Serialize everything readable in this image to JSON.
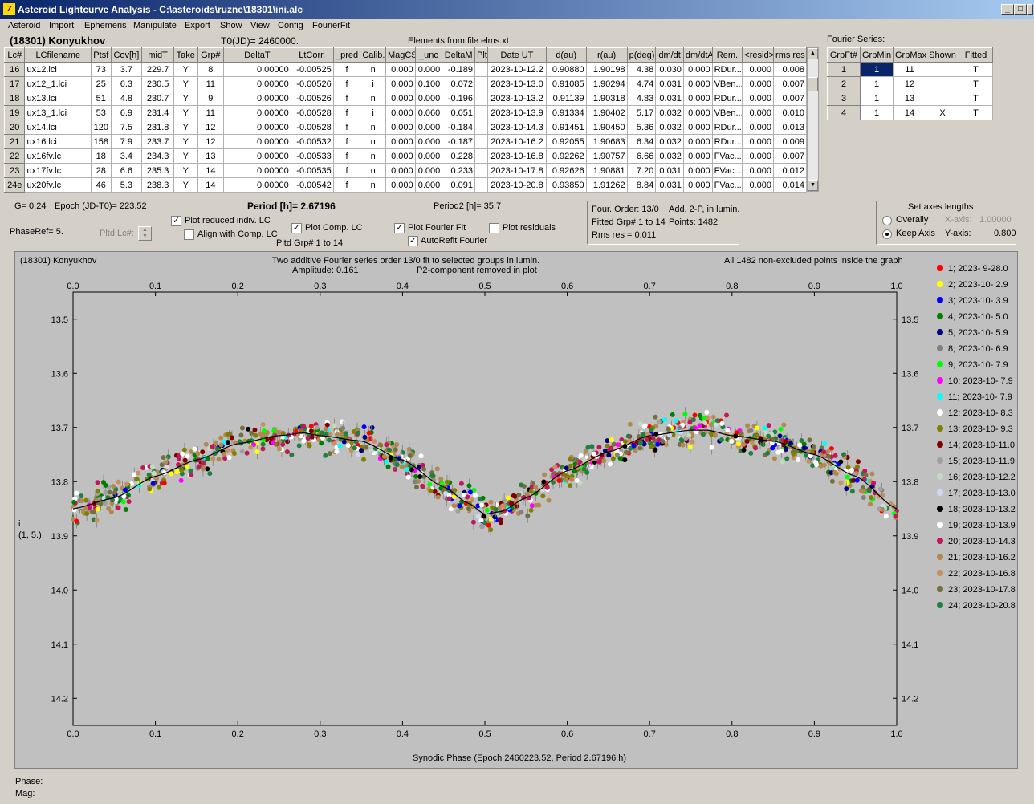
{
  "window": {
    "title": "Asteroid Lightcurve Analysis - C:\\asteroids\\ruzne\\18301\\ini.alc",
    "min": "_",
    "max": "□",
    "close": "×"
  },
  "menu": [
    "Asteroid",
    "Import",
    "Ephemeris",
    "Manipulate",
    "Export",
    "Show",
    "View",
    "Config",
    "FourierFit"
  ],
  "header": {
    "object": "(18301) Konyukhov",
    "t0": "T0(JD)= 2460000.",
    "elements": "Elements from file elms.xt",
    "fourier_title": "Fourier Series:"
  },
  "lc_table": {
    "columns": [
      "Lc#",
      "LCfilename",
      "Ptsf",
      "Cov[h]",
      "midT",
      "Take",
      "Grp#",
      "DeltaT",
      "LtCorr.",
      "_pred",
      "Calib.",
      "MagCS",
      "_unc",
      "DeltaM",
      "Plt",
      "Date UT",
      "d(au)",
      "r(au)",
      "p(deg)",
      "dm/dt",
      "dm/dtA",
      "Rem.",
      "<resid>",
      "rms res"
    ],
    "rows": [
      [
        "16",
        "ux12.lci",
        "73",
        "3.7",
        "229.7",
        "Y",
        "8",
        "0.00000",
        "-0.00525",
        "f",
        "n",
        "0.000",
        "0.000",
        "-0.189",
        "",
        "2023-10-12.2",
        "0.90880",
        "1.90198",
        "4.38",
        "0.030",
        "0.000",
        "RDur...",
        "0.000",
        "0.008"
      ],
      [
        "17",
        "ux12_1.lci",
        "25",
        "6.3",
        "230.5",
        "Y",
        "11",
        "0.00000",
        "-0.00526",
        "f",
        "i",
        "0.000",
        "0.100",
        "0.072",
        "",
        "2023-10-13.0",
        "0.91085",
        "1.90294",
        "4.74",
        "0.031",
        "0.000",
        "VBen...",
        "0.000",
        "0.007"
      ],
      [
        "18",
        "ux13.lci",
        "51",
        "4.8",
        "230.7",
        "Y",
        "9",
        "0.00000",
        "-0.00526",
        "f",
        "n",
        "0.000",
        "0.000",
        "-0.196",
        "",
        "2023-10-13.2",
        "0.91139",
        "1.90318",
        "4.83",
        "0.031",
        "0.000",
        "RDur...",
        "0.000",
        "0.007"
      ],
      [
        "19",
        "ux13_1.lci",
        "53",
        "6.9",
        "231.4",
        "Y",
        "11",
        "0.00000",
        "-0.00528",
        "f",
        "i",
        "0.000",
        "0.060",
        "0.051",
        "",
        "2023-10-13.9",
        "0.91334",
        "1.90402",
        "5.17",
        "0.032",
        "0.000",
        "VBen...",
        "0.000",
        "0.010"
      ],
      [
        "20",
        "ux14.lci",
        "120",
        "7.5",
        "231.8",
        "Y",
        "12",
        "0.00000",
        "-0.00528",
        "f",
        "n",
        "0.000",
        "0.000",
        "-0.184",
        "",
        "2023-10-14.3",
        "0.91451",
        "1.90450",
        "5.36",
        "0.032",
        "0.000",
        "RDur...",
        "0.000",
        "0.013"
      ],
      [
        "21",
        "ux16.lci",
        "158",
        "7.9",
        "233.7",
        "Y",
        "12",
        "0.00000",
        "-0.00532",
        "f",
        "n",
        "0.000",
        "0.000",
        "-0.187",
        "",
        "2023-10-16.2",
        "0.92055",
        "1.90683",
        "6.34",
        "0.032",
        "0.000",
        "RDur...",
        "0.000",
        "0.009"
      ],
      [
        "22",
        "ux16fv.lc",
        "18",
        "3.4",
        "234.3",
        "Y",
        "13",
        "0.00000",
        "-0.00533",
        "f",
        "n",
        "0.000",
        "0.000",
        "0.228",
        "",
        "2023-10-16.8",
        "0.92262",
        "1.90757",
        "6.66",
        "0.032",
        "0.000",
        "FVac...",
        "0.000",
        "0.007"
      ],
      [
        "23",
        "ux17fv.lc",
        "28",
        "6.6",
        "235.3",
        "Y",
        "14",
        "0.00000",
        "-0.00535",
        "f",
        "n",
        "0.000",
        "0.000",
        "0.233",
        "",
        "2023-10-17.8",
        "0.92626",
        "1.90881",
        "7.20",
        "0.031",
        "0.000",
        "FVac...",
        "0.000",
        "0.012"
      ],
      [
        "24e",
        "ux20fv.lc",
        "46",
        "5.3",
        "238.3",
        "Y",
        "14",
        "0.00000",
        "-0.00542",
        "f",
        "n",
        "0.000",
        "0.000",
        "0.091",
        "",
        "2023-10-20.8",
        "0.93850",
        "1.91262",
        "8.84",
        "0.031",
        "0.000",
        "FVac...",
        "0.000",
        "0.014"
      ]
    ]
  },
  "fourier_table": {
    "columns": [
      "GrpFt#",
      "GrpMin",
      "GrpMax",
      "Shown",
      "Fitted"
    ],
    "rows": [
      [
        "1",
        "1",
        "11",
        "",
        "T"
      ],
      [
        "2",
        "1",
        "12",
        "",
        "T"
      ],
      [
        "3",
        "1",
        "13",
        "",
        "T"
      ],
      [
        "4",
        "1",
        "14",
        "X",
        "T"
      ]
    ]
  },
  "controls": {
    "g": "G= 0.24",
    "epoch": "Epoch (JD-T0)= 223.52",
    "period_label": "Period [h]=",
    "period_value": "2.67196",
    "period2": "Period2 [h]= 35.7",
    "phaseref": "PhaseRef= 5.",
    "pltd_lc": "Pltd Lc#:",
    "plot_reduced": "Plot reduced indiv. LC",
    "align_comp": "Align with Comp. LC",
    "plot_comp": "Plot Comp. LC",
    "pltd_grp": "Pltd Grp#  1   to   14",
    "plot_fourier": "Plot Fourier Fit",
    "autorefit": "AutoRefit Fourier",
    "plot_resid": "Plot residuals",
    "four_order": "Four. Order: 13/0",
    "add_2p": "Add. 2-P, in lumin.",
    "fitted_grp": "Fitted Grp# 1 to 14",
    "points": "Points: 1482",
    "rms": "Rms res     = 0.011",
    "axes_title": "Set axes lengths",
    "overally": "Overally",
    "keep_axis": "Keep Axis",
    "xaxis_label": "X-axis:",
    "xaxis_val": "1.00000",
    "yaxis_label": "Y-axis:",
    "yaxis_val": "0.800"
  },
  "check_states": {
    "plot_reduced": "✓",
    "align_comp": "",
    "plot_comp": "✓",
    "plot_fourier": "✓",
    "autorefit": "✓",
    "plot_resid": ""
  },
  "plot": {
    "top_left": "(18301) Konyukhov",
    "desc1": "Two additive Fourier series order 13/0 fit to selected groups in lumin.",
    "desc2": "Amplitude: 0.161",
    "desc3": "P2-component removed in plot",
    "top_right": "All 1482 non-excluded points inside the graph",
    "ylabel1": "i",
    "ylabel2": "(1, 5.)",
    "xlabel": "Synodic Phase (Epoch 2460223.52, Period 2.67196 h)"
  },
  "footer": {
    "phase": "Phase:",
    "mag": "Mag:"
  },
  "chart_data": {
    "type": "scatter",
    "x_ticks": [
      "0.0",
      "0.1",
      "0.2",
      "0.3",
      "0.4",
      "0.5",
      "0.6",
      "0.7",
      "0.8",
      "0.9",
      "1.0"
    ],
    "y_ticks": [
      "13.5",
      "13.6",
      "13.7",
      "13.8",
      "13.9",
      "14.0",
      "14.1",
      "14.2"
    ],
    "xlim": [
      0,
      1
    ],
    "ylim": [
      14.25,
      13.45
    ],
    "y_inverted": true,
    "series": [
      {
        "name": "1; 2023- 9-28.0",
        "color": "#ff0000"
      },
      {
        "name": "2; 2023-10- 2.9",
        "color": "#ffff00"
      },
      {
        "name": "3; 2023-10- 3.9",
        "color": "#0000ff"
      },
      {
        "name": "4; 2023-10- 5.0",
        "color": "#008000"
      },
      {
        "name": "5; 2023-10- 5.9",
        "color": "#000080"
      },
      {
        "name": "8; 2023-10- 6.9",
        "color": "#808080"
      },
      {
        "name": "9; 2023-10- 7.9",
        "color": "#00ff00"
      },
      {
        "name": "10; 2023-10- 7.9",
        "color": "#ff00ff"
      },
      {
        "name": "11; 2023-10- 7.9",
        "color": "#00ffff"
      },
      {
        "name": "12; 2023-10- 8.3",
        "color": "#ffffff"
      },
      {
        "name": "13; 2023-10- 9.3",
        "color": "#808000"
      },
      {
        "name": "14; 2023-10-11.0",
        "color": "#800000"
      },
      {
        "name": "15; 2023-10-11.9",
        "color": "#a0a0a0"
      },
      {
        "name": "16; 2023-10-12.2",
        "color": "#c0dcc0"
      },
      {
        "name": "17; 2023-10-13.0",
        "color": "#d0d8f0"
      },
      {
        "name": "18; 2023-10-13.2",
        "color": "#000000"
      },
      {
        "name": "19; 2023-10-13.9",
        "color": "#ffffff"
      },
      {
        "name": "20; 2023-10-14.3",
        "color": "#c0185a"
      },
      {
        "name": "21; 2023-10-16.2",
        "color": "#b08850"
      },
      {
        "name": "22; 2023-10-16.8",
        "color": "#c89060"
      },
      {
        "name": "23; 2023-10-17.8",
        "color": "#707040"
      },
      {
        "name": "24; 2023-10-20.8",
        "color": "#208040"
      }
    ],
    "fit_curve": {
      "x": [
        0,
        0.05,
        0.1,
        0.15,
        0.2,
        0.25,
        0.28,
        0.3,
        0.35,
        0.4,
        0.45,
        0.48,
        0.5,
        0.52,
        0.55,
        0.6,
        0.65,
        0.7,
        0.75,
        0.77,
        0.8,
        0.85,
        0.9,
        0.95,
        1.0
      ],
      "y": [
        13.85,
        13.83,
        13.79,
        13.76,
        13.73,
        13.715,
        13.71,
        13.715,
        13.725,
        13.76,
        13.81,
        13.84,
        13.86,
        13.855,
        13.83,
        13.78,
        13.745,
        13.715,
        13.705,
        13.705,
        13.715,
        13.725,
        13.75,
        13.79,
        13.85
      ]
    }
  }
}
